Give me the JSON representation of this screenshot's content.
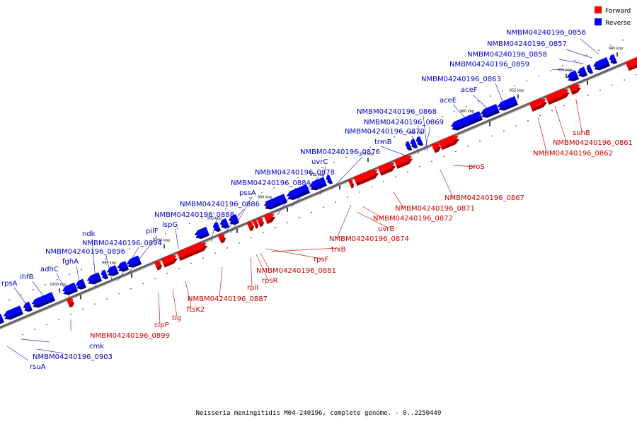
{
  "caption": "Neisseria meningitidis M04-240196, complete genome. - 0..2250449",
  "legend": [
    {
      "label": "Forward",
      "color": "#ff0000"
    },
    {
      "label": "Reverse",
      "color": "#0000ff"
    }
  ],
  "colors": {
    "forward": "#ff0000",
    "forward_dark": "#a40000",
    "reverse": "#0000ff",
    "reverse_dark": "#00008a",
    "forward_text": "#cc0000",
    "reverse_text": "#0000cc",
    "backbone": "#8a8a8a"
  },
  "axis": {
    "ticks": [
      "945 kbp",
      "950 kbp",
      "955 kbp",
      "960 kbp",
      "965 kbp",
      "970 kbp",
      "975 kbp",
      "980 kbp",
      "985 kbp",
      "990 kbp",
      "995 kbp",
      "1000 kbp"
    ]
  },
  "reverse_labels": [
    "NMBM04240196_0856",
    "NMBM04240196_0857",
    "NMBM04240196_0858",
    "NMBM04240196_0859",
    "NMBM04240196_0863",
    "aceF",
    "aceE",
    "NMBM04240196_0868",
    "NMBM04240196_0869",
    "NMBM04240196_0870",
    "trmB",
    "NMBM04240196_0876",
    "uvrC",
    "NMBM04240196_0878",
    "NMBM04240196_0884",
    "pssA",
    "NMBM04240196_0886",
    "NMBM04240196_0888",
    "ispG",
    "pilF",
    "ndk",
    "NMBM04240196_0894",
    "NMBM04240196_0896",
    "fghA",
    "adhC",
    "ihfB",
    "rpsA",
    "cmk",
    "NMBM04240196_0903",
    "rsuA"
  ],
  "forward_labels": [
    "suhB",
    "NMBM04240196_0861",
    "NMBM04240196_0862",
    "proS",
    "NMBM04240196_0867",
    "NMBM04240196_0871",
    "NMBM04240196_0872",
    "uvrB",
    "NMBM04240196_0874",
    "trxB",
    "rpsF",
    "NMBM04240196_0881",
    "rpsR",
    "rplI",
    "NMBM04240196_0887",
    "ftsK2",
    "tig",
    "clpP",
    "NMBM04240196_0899"
  ]
}
